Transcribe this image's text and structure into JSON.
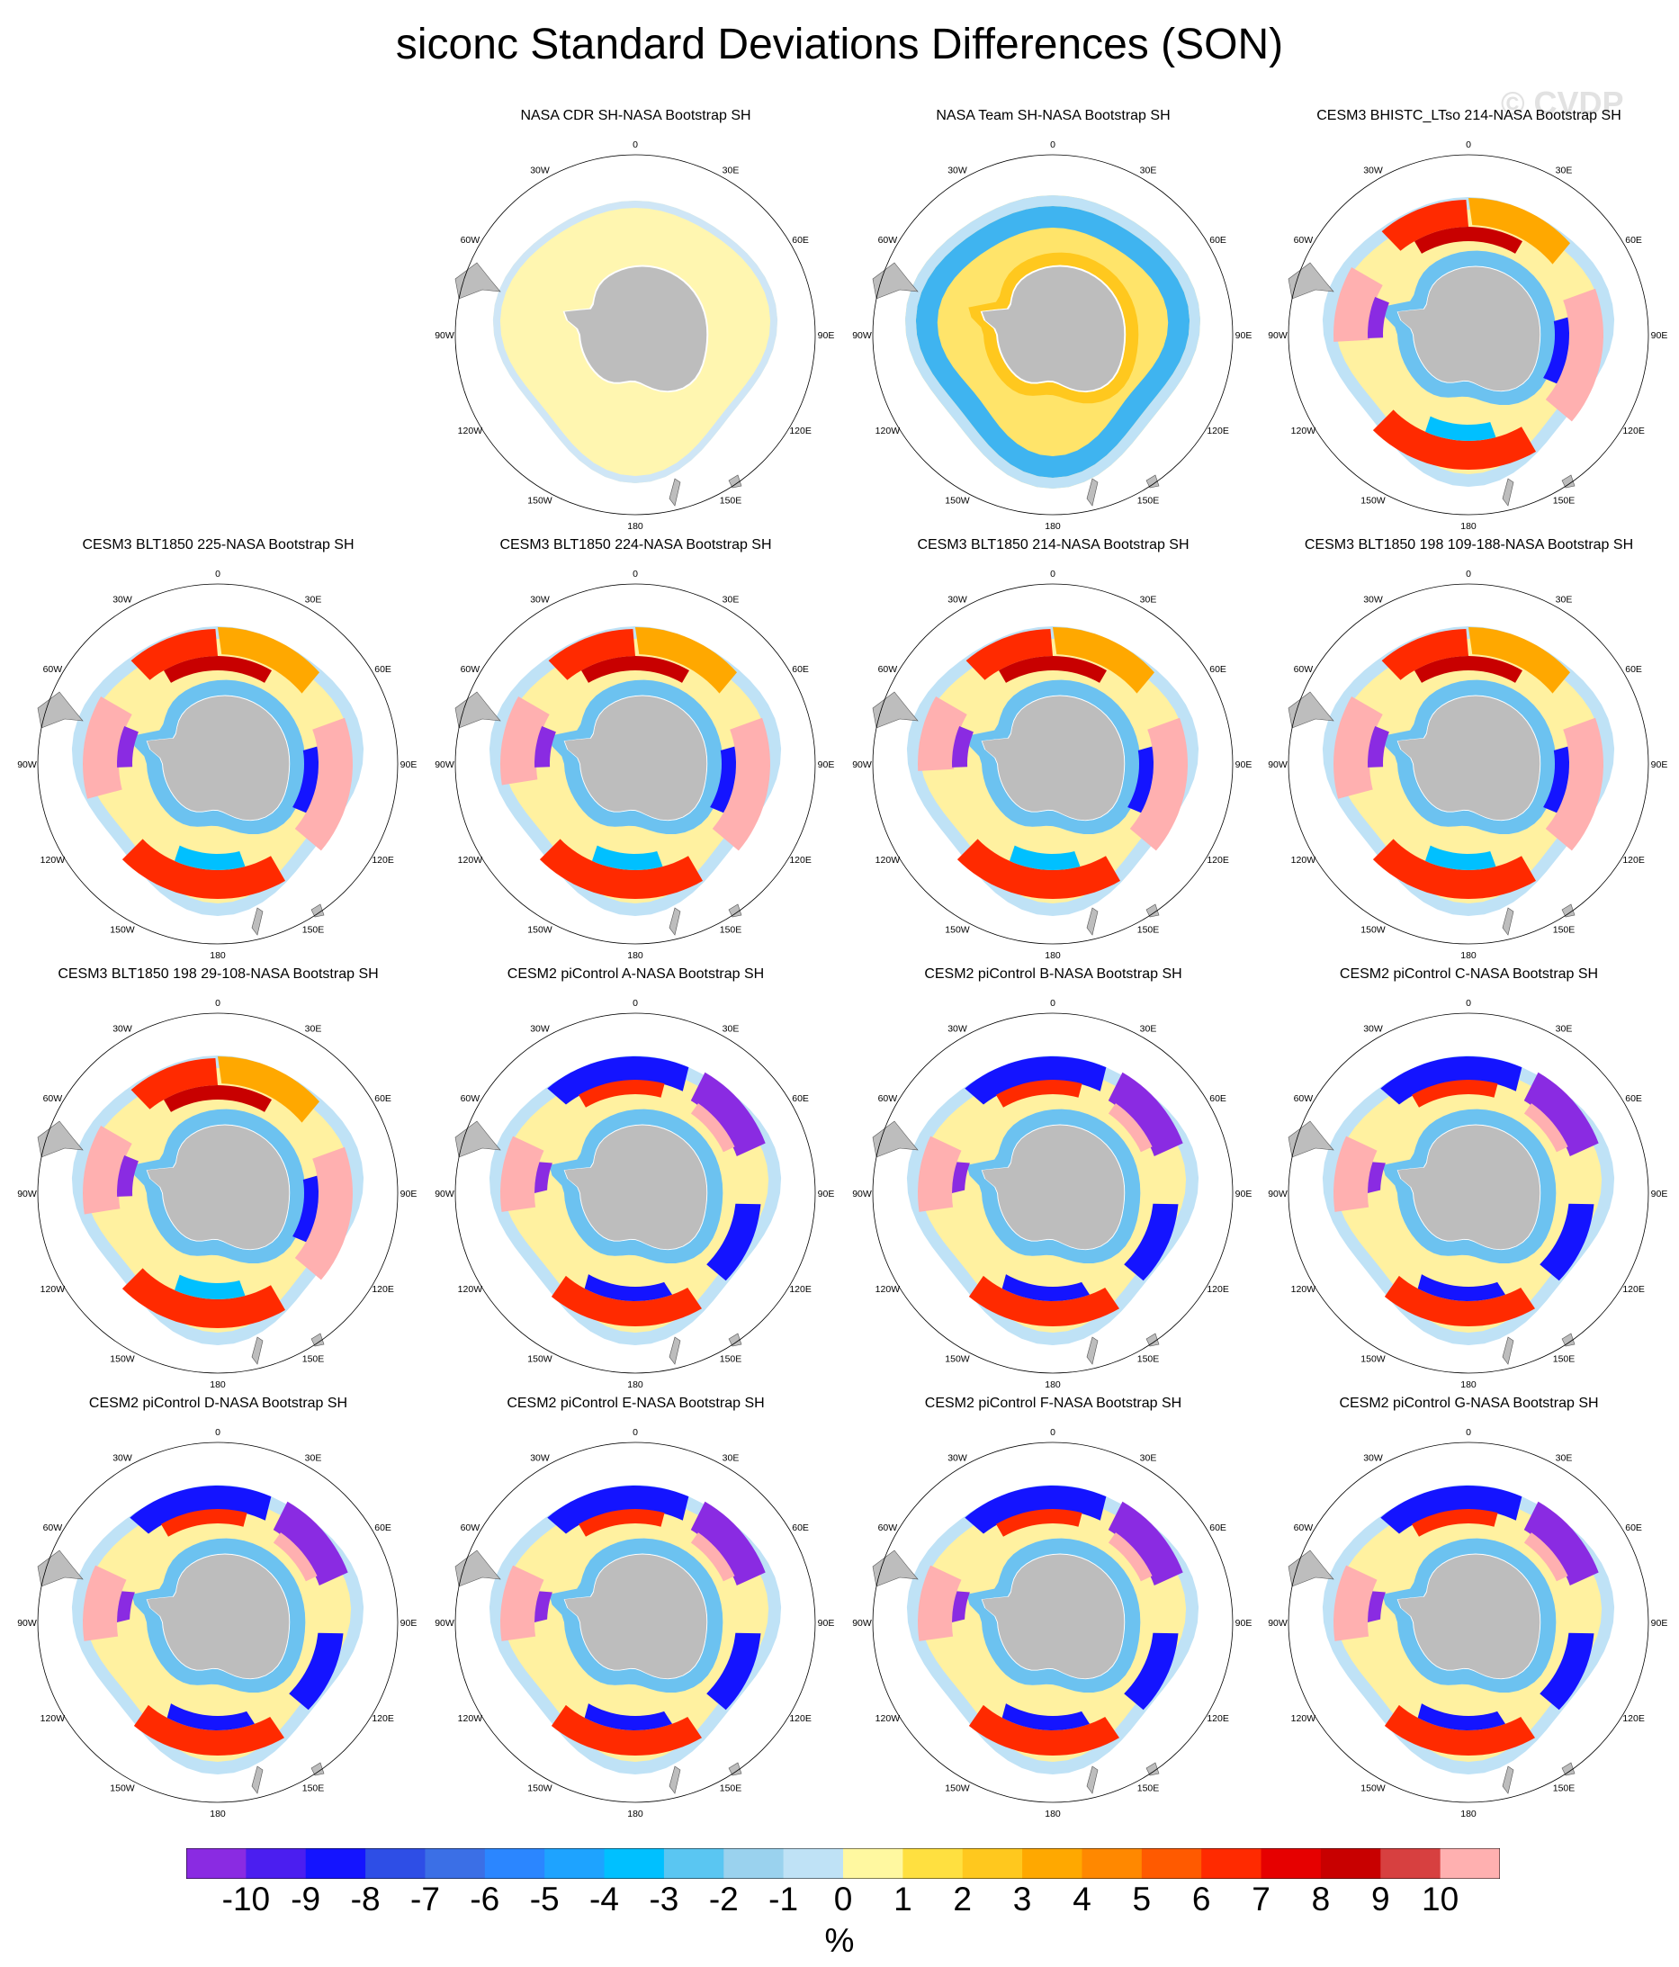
{
  "title": "siconc Standard Deviations Differences (SON)",
  "watermark": "© CVDP",
  "longitude_labels": [
    "0",
    "30E",
    "60E",
    "90E",
    "120E",
    "150E",
    "180",
    "150W",
    "120W",
    "90W",
    "60W",
    "30W"
  ],
  "panels": [
    {
      "title": "NASA CDR SH-NASA Bootstrap SH",
      "pattern": "cdr"
    },
    {
      "title": "NASA Team SH-NASA Bootstrap SH",
      "pattern": "team"
    },
    {
      "title": "CESM3 BHISTC_LTso 214-NASA Bootstrap SH",
      "pattern": "model"
    },
    {
      "title": "CESM3 BLT1850 225-NASA Bootstrap SH",
      "pattern": "model"
    },
    {
      "title": "CESM3 BLT1850 224-NASA Bootstrap SH",
      "pattern": "model"
    },
    {
      "title": "CESM3 BLT1850 214-NASA Bootstrap SH",
      "pattern": "model"
    },
    {
      "title": "CESM3 BLT1850 198 109-188-NASA Bootstrap SH",
      "pattern": "model"
    },
    {
      "title": "CESM3 BLT1850 198 29-108-NASA Bootstrap SH",
      "pattern": "model"
    },
    {
      "title": "CESM2 piControl A-NASA Bootstrap SH",
      "pattern": "cesm2"
    },
    {
      "title": "CESM2 piControl B-NASA Bootstrap SH",
      "pattern": "cesm2"
    },
    {
      "title": "CESM2 piControl C-NASA Bootstrap SH",
      "pattern": "cesm2"
    },
    {
      "title": "CESM2 piControl D-NASA Bootstrap SH",
      "pattern": "cesm2"
    },
    {
      "title": "CESM2 piControl E-NASA Bootstrap SH",
      "pattern": "cesm2"
    },
    {
      "title": "CESM2 piControl F-NASA Bootstrap SH",
      "pattern": "cesm2"
    },
    {
      "title": "CESM2 piControl G-NASA Bootstrap SH",
      "pattern": "cesm2"
    }
  ],
  "colorbar": {
    "colors": [
      "#8a2be2",
      "#4b1ef0",
      "#1414ff",
      "#2e4ee6",
      "#3b6fe6",
      "#2b86ff",
      "#1ea3ff",
      "#00c0ff",
      "#5ac6f2",
      "#9ad2ee",
      "#bfe2f6",
      "#fff8a0",
      "#ffe040",
      "#ffc81e",
      "#ffa800",
      "#ff8800",
      "#ff5a00",
      "#ff2a00",
      "#e60000",
      "#c80000",
      "#d74040",
      "#ffb0b0"
    ],
    "labels": [
      "-10",
      "-9",
      "-8",
      "-7",
      "-6",
      "-5",
      "-4",
      "-3",
      "-2",
      "-1",
      "0",
      "1",
      "2",
      "3",
      "4",
      "5",
      "6",
      "7",
      "8",
      "9",
      "10"
    ],
    "units": "%"
  },
  "land_color": "#bdbdbd"
}
